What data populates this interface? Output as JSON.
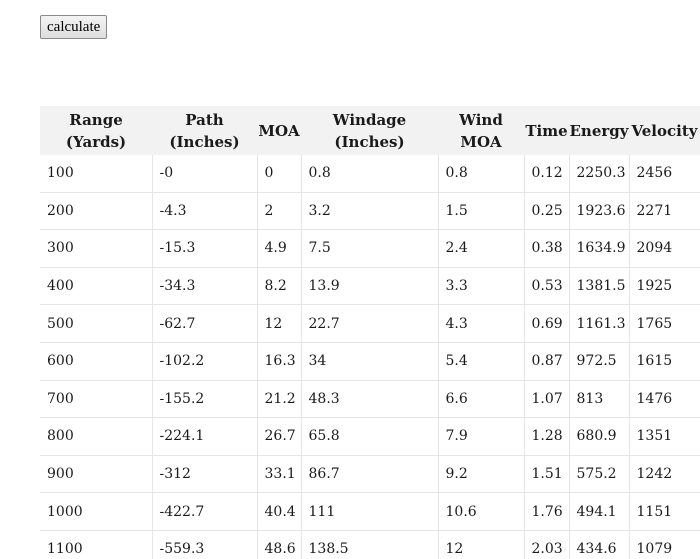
{
  "toolbar": {
    "calculate_label": "calculate"
  },
  "table": {
    "headers": [
      [
        "Range",
        "(Yards)"
      ],
      [
        "Path",
        "(Inches)"
      ],
      [
        "MOA"
      ],
      [
        "Windage",
        "(Inches)"
      ],
      [
        "Wind",
        "MOA"
      ],
      [
        "Time"
      ],
      [
        "Energy"
      ],
      [
        "Velocity"
      ]
    ],
    "rows": [
      [
        "100",
        "-0",
        "0",
        "0.8",
        "0.8",
        "0.12",
        "2250.3",
        "2456"
      ],
      [
        "200",
        "-4.3",
        "2",
        "3.2",
        "1.5",
        "0.25",
        "1923.6",
        "2271"
      ],
      [
        "300",
        "-15.3",
        "4.9",
        "7.5",
        "2.4",
        "0.38",
        "1634.9",
        "2094"
      ],
      [
        "400",
        "-34.3",
        "8.2",
        "13.9",
        "3.3",
        "0.53",
        "1381.5",
        "1925"
      ],
      [
        "500",
        "-62.7",
        "12",
        "22.7",
        "4.3",
        "0.69",
        "1161.3",
        "1765"
      ],
      [
        "600",
        "-102.2",
        "16.3",
        "34",
        "5.4",
        "0.87",
        "972.5",
        "1615"
      ],
      [
        "700",
        "-155.2",
        "21.2",
        "48.3",
        "6.6",
        "1.07",
        "813",
        "1476"
      ],
      [
        "800",
        "-224.1",
        "26.7",
        "65.8",
        "7.9",
        "1.28",
        "680.9",
        "1351"
      ],
      [
        "900",
        "-312",
        "33.1",
        "86.7",
        "9.2",
        "1.51",
        "575.2",
        "1242"
      ],
      [
        "1000",
        "-422.7",
        "40.4",
        "111",
        "10.6",
        "1.76",
        "494.1",
        "1151"
      ],
      [
        "1100",
        "-559.3",
        "48.6",
        "138.5",
        "12",
        "2.03",
        "434.6",
        "1079"
      ]
    ]
  }
}
